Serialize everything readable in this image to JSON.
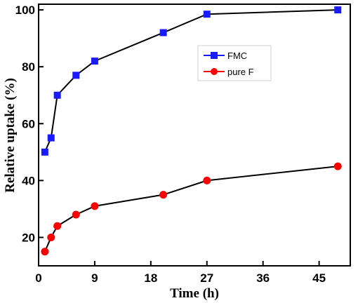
{
  "chart_data": {
    "type": "line",
    "xlabel": "Time (h)",
    "ylabel": "Relative uptake (%)",
    "x_ticks": [
      {
        "value": 0,
        "label": "0"
      },
      {
        "value": 9,
        "label": "9"
      },
      {
        "value": 18,
        "label": "18"
      },
      {
        "value": 27,
        "label": "27"
      },
      {
        "value": 36,
        "label": "36"
      },
      {
        "value": 45,
        "label": "45"
      }
    ],
    "y_ticks": [
      {
        "value": 20,
        "label": "20"
      },
      {
        "value": 40,
        "label": "40"
      },
      {
        "value": 60,
        "label": "60"
      },
      {
        "value": 80,
        "label": "80"
      },
      {
        "value": 100,
        "label": "100"
      }
    ],
    "xlim": [
      0,
      50
    ],
    "ylim": [
      10,
      102
    ],
    "grid": false,
    "legend_position": "upper-right",
    "series": [
      {
        "name": "FMC",
        "color": "#1a1aff",
        "marker": "square",
        "x": [
          1,
          2,
          3,
          6,
          9,
          20,
          27,
          48
        ],
        "y": [
          50,
          55,
          70,
          77,
          82,
          92,
          98.5,
          100
        ]
      },
      {
        "name": "pure F",
        "color": "#ff0000",
        "marker": "circle",
        "x": [
          1,
          2,
          3,
          6,
          9,
          20,
          27,
          48
        ],
        "y": [
          15,
          20,
          24,
          28,
          31,
          35,
          40,
          45
        ]
      }
    ]
  }
}
